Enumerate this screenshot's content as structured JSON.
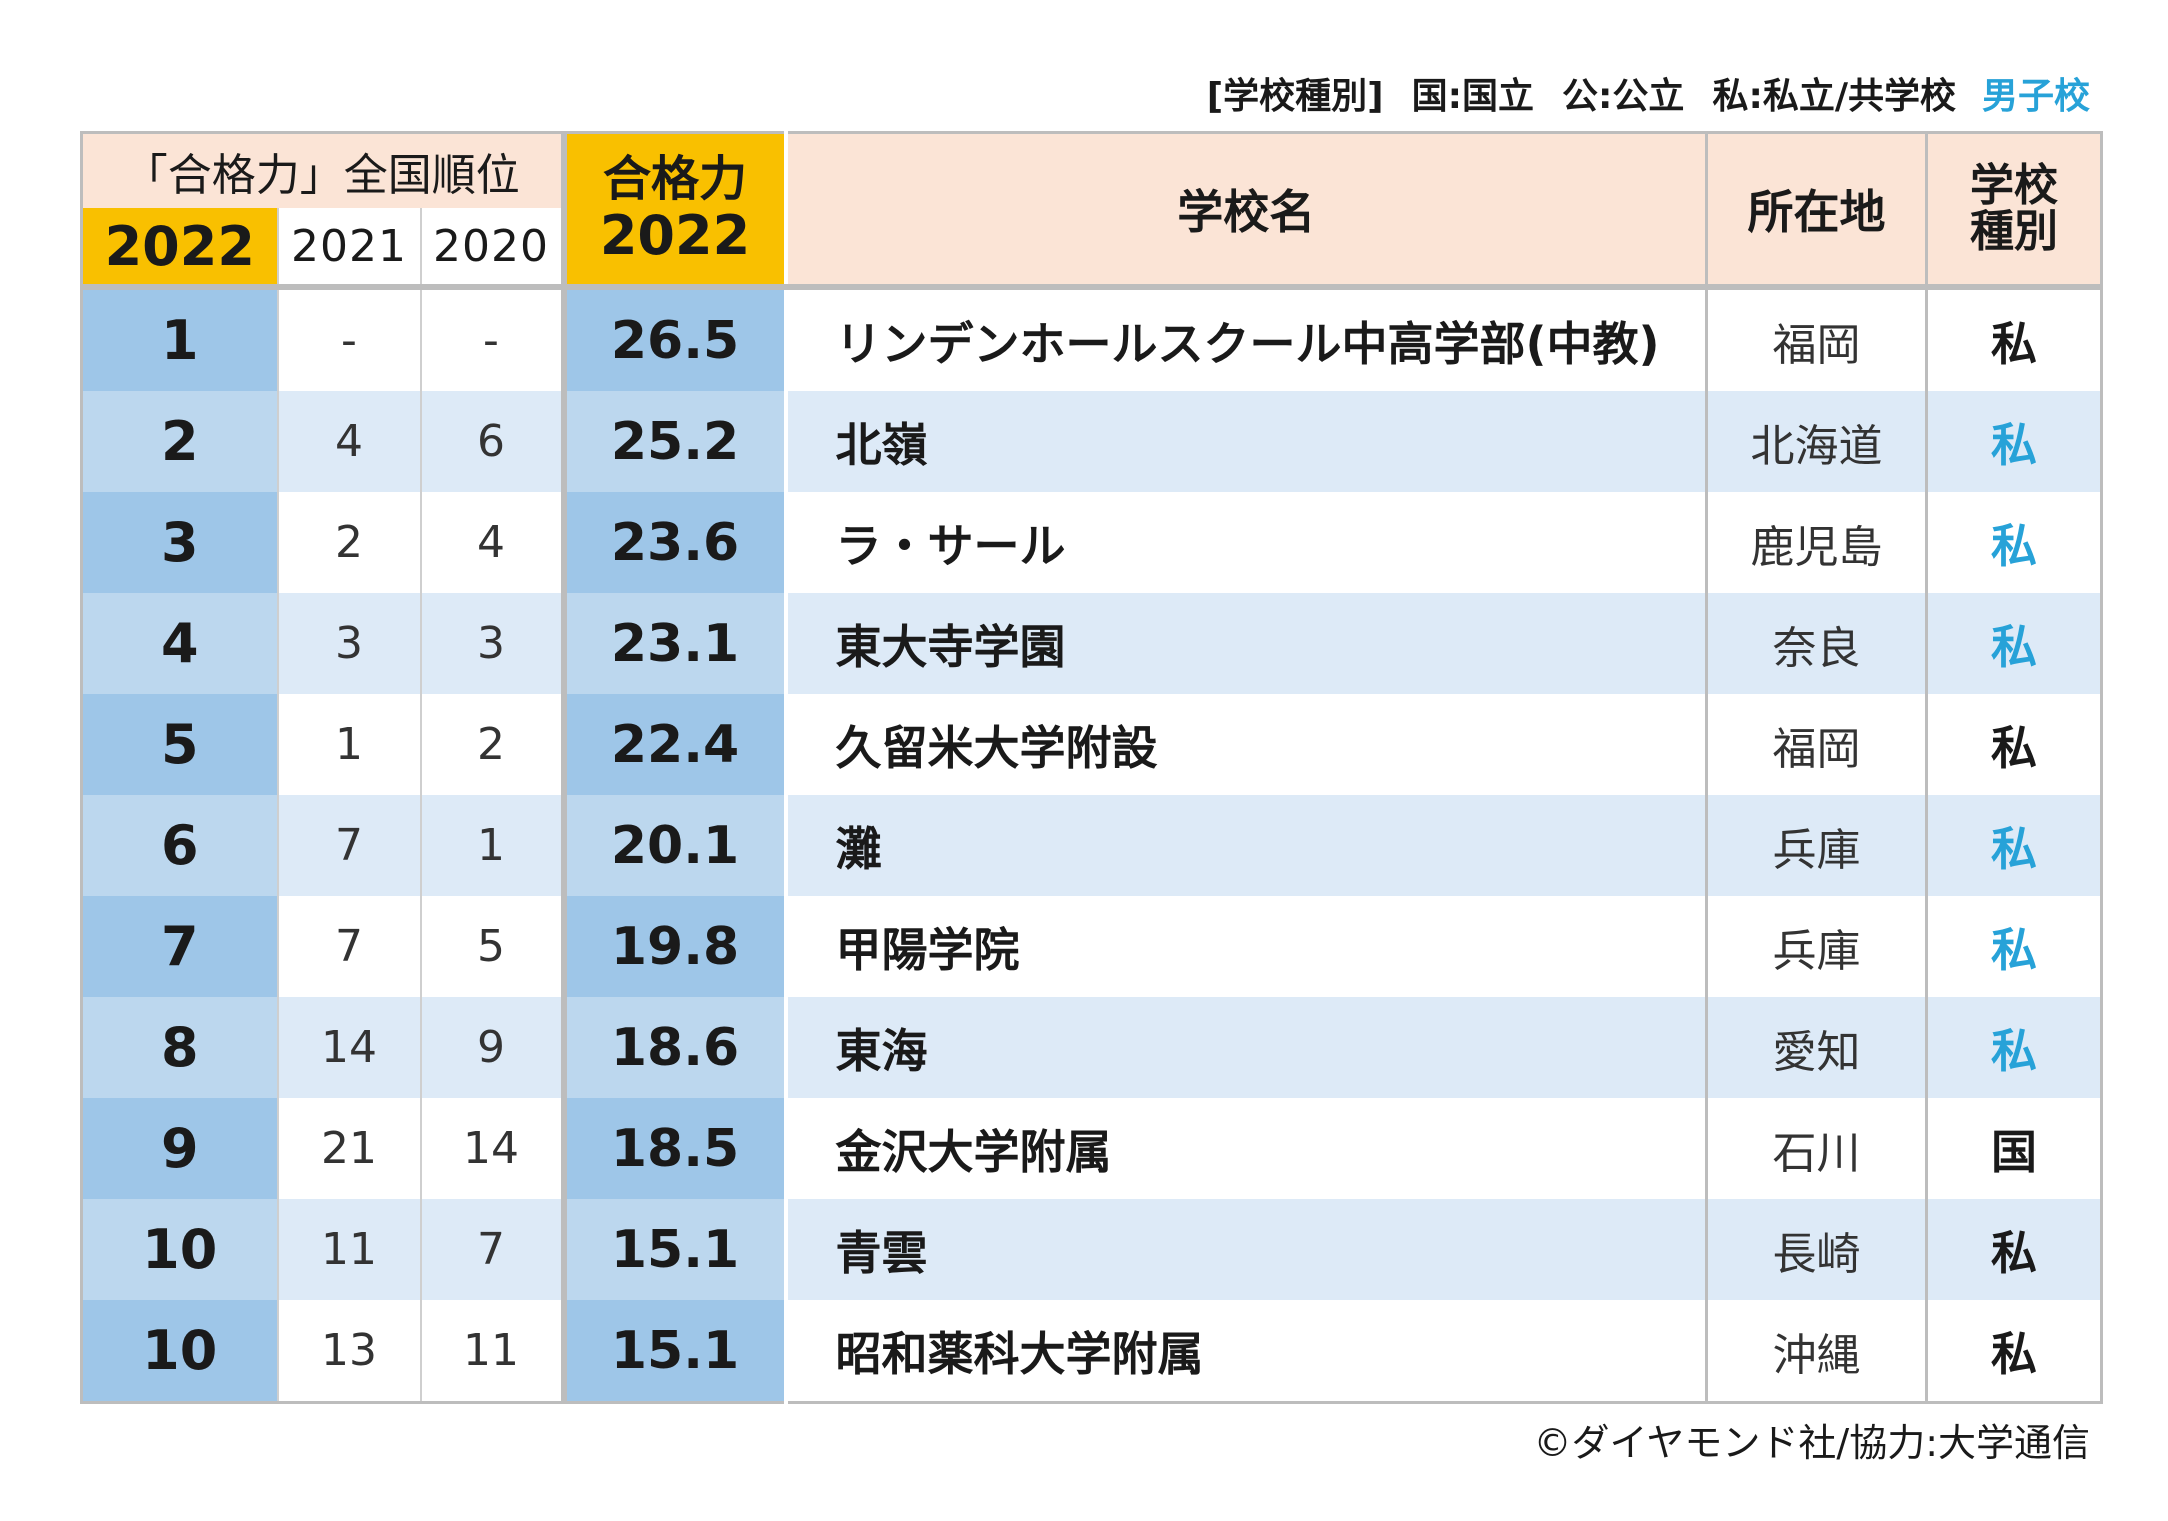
{
  "legend": {
    "prefix": "[学校種別]",
    "kokuritsu": "国:国立",
    "kouritsu": "公:公立",
    "shiritsu": "私:私立/共学校",
    "boys": "男子校"
  },
  "header": {
    "rank_group_title": "「合格力」全国順位",
    "year_2022": "2022",
    "year_2021": "2021",
    "year_2020": "2020",
    "score_title": "合格力",
    "score_year": "2022",
    "school_name": "学校名",
    "location": "所在地",
    "type_line1": "学校",
    "type_line2": "種別"
  },
  "colors": {
    "boys_school": "#27a2d8",
    "header_highlight": "#f9c000",
    "header_cream": "#fbe4d6"
  },
  "rows": [
    {
      "rank": "1",
      "y2021": "-",
      "y2020": "-",
      "score": "26.5",
      "name": "リンデンホールスクール中高学部(中教)",
      "location": "福岡",
      "type": "私",
      "boys": false
    },
    {
      "rank": "2",
      "y2021": "4",
      "y2020": "6",
      "score": "25.2",
      "name": "北嶺",
      "location": "北海道",
      "type": "私",
      "boys": true
    },
    {
      "rank": "3",
      "y2021": "2",
      "y2020": "4",
      "score": "23.6",
      "name": "ラ・サール",
      "location": "鹿児島",
      "type": "私",
      "boys": true
    },
    {
      "rank": "4",
      "y2021": "3",
      "y2020": "3",
      "score": "23.1",
      "name": "東大寺学園",
      "location": "奈良",
      "type": "私",
      "boys": true
    },
    {
      "rank": "5",
      "y2021": "1",
      "y2020": "2",
      "score": "22.4",
      "name": "久留米大学附設",
      "location": "福岡",
      "type": "私",
      "boys": false
    },
    {
      "rank": "6",
      "y2021": "7",
      "y2020": "1",
      "score": "20.1",
      "name": "灘",
      "location": "兵庫",
      "type": "私",
      "boys": true
    },
    {
      "rank": "7",
      "y2021": "7",
      "y2020": "5",
      "score": "19.8",
      "name": "甲陽学院",
      "location": "兵庫",
      "type": "私",
      "boys": true
    },
    {
      "rank": "8",
      "y2021": "14",
      "y2020": "9",
      "score": "18.6",
      "name": "東海",
      "location": "愛知",
      "type": "私",
      "boys": true
    },
    {
      "rank": "9",
      "y2021": "21",
      "y2020": "14",
      "score": "18.5",
      "name": "金沢大学附属",
      "location": "石川",
      "type": "国",
      "boys": false
    },
    {
      "rank": "10",
      "y2021": "11",
      "y2020": "7",
      "score": "15.1",
      "name": "青雲",
      "location": "長崎",
      "type": "私",
      "boys": false
    },
    {
      "rank": "10",
      "y2021": "13",
      "y2020": "11",
      "score": "15.1",
      "name": "昭和薬科大学附属",
      "location": "沖縄",
      "type": "私",
      "boys": false
    }
  ],
  "footer": "©ダイヤモンド社/協力:大学通信"
}
